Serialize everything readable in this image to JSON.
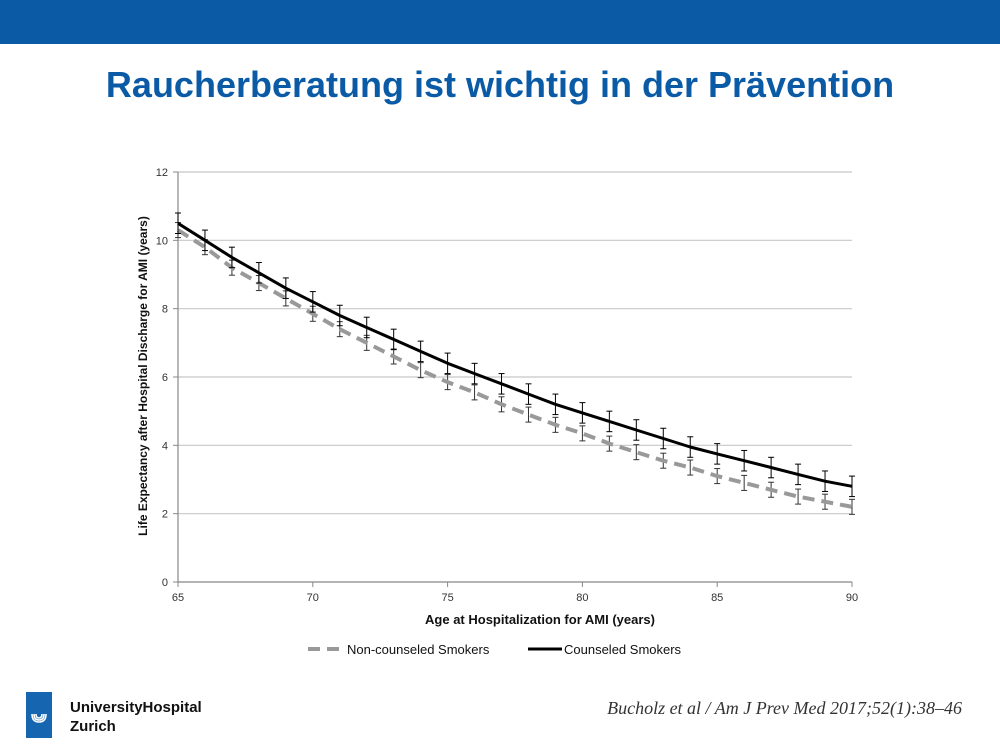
{
  "slide": {
    "title": "Raucherberatung ist wichtig in der Prävention",
    "citation": "Bucholz et al / Am J Prev Med 2017;52(1):38–46",
    "institution": {
      "line1": "UniversityHospital",
      "line2": "Zurich"
    },
    "accent_color": "#0a5aa5"
  },
  "chart_data": {
    "type": "line",
    "title": "",
    "xlabel": "Age at Hospitalization for AMI (years)",
    "ylabel": "Life Expectancy after Hospital Discharge for AMI (years)",
    "xlim": [
      65,
      90
    ],
    "ylim": [
      0,
      12
    ],
    "x_ticks": [
      65,
      70,
      75,
      80,
      85,
      90
    ],
    "y_ticks": [
      0,
      2,
      4,
      6,
      8,
      10,
      12
    ],
    "grid": "horizontal",
    "legend_position": "bottom",
    "x": [
      65,
      66,
      67,
      68,
      69,
      70,
      71,
      72,
      73,
      74,
      75,
      76,
      77,
      78,
      79,
      80,
      81,
      82,
      83,
      84,
      85,
      86,
      87,
      88,
      89,
      90
    ],
    "series": [
      {
        "name": "Non-counseled Smokers",
        "style": "dashed",
        "color": "#999999",
        "values": [
          10.3,
          9.8,
          9.2,
          8.75,
          8.3,
          7.85,
          7.4,
          7.0,
          6.6,
          6.2,
          5.85,
          5.55,
          5.2,
          4.9,
          4.6,
          4.35,
          4.05,
          3.8,
          3.55,
          3.35,
          3.1,
          2.9,
          2.7,
          2.5,
          2.35,
          2.2
        ],
        "error": 0.22
      },
      {
        "name": "Counseled Smokers",
        "style": "solid",
        "color": "#000000",
        "values": [
          10.5,
          10.0,
          9.5,
          9.05,
          8.6,
          8.2,
          7.8,
          7.45,
          7.1,
          6.75,
          6.4,
          6.1,
          5.8,
          5.5,
          5.2,
          4.95,
          4.7,
          4.45,
          4.2,
          3.95,
          3.75,
          3.55,
          3.35,
          3.15,
          2.95,
          2.8
        ],
        "error": 0.3
      }
    ]
  }
}
